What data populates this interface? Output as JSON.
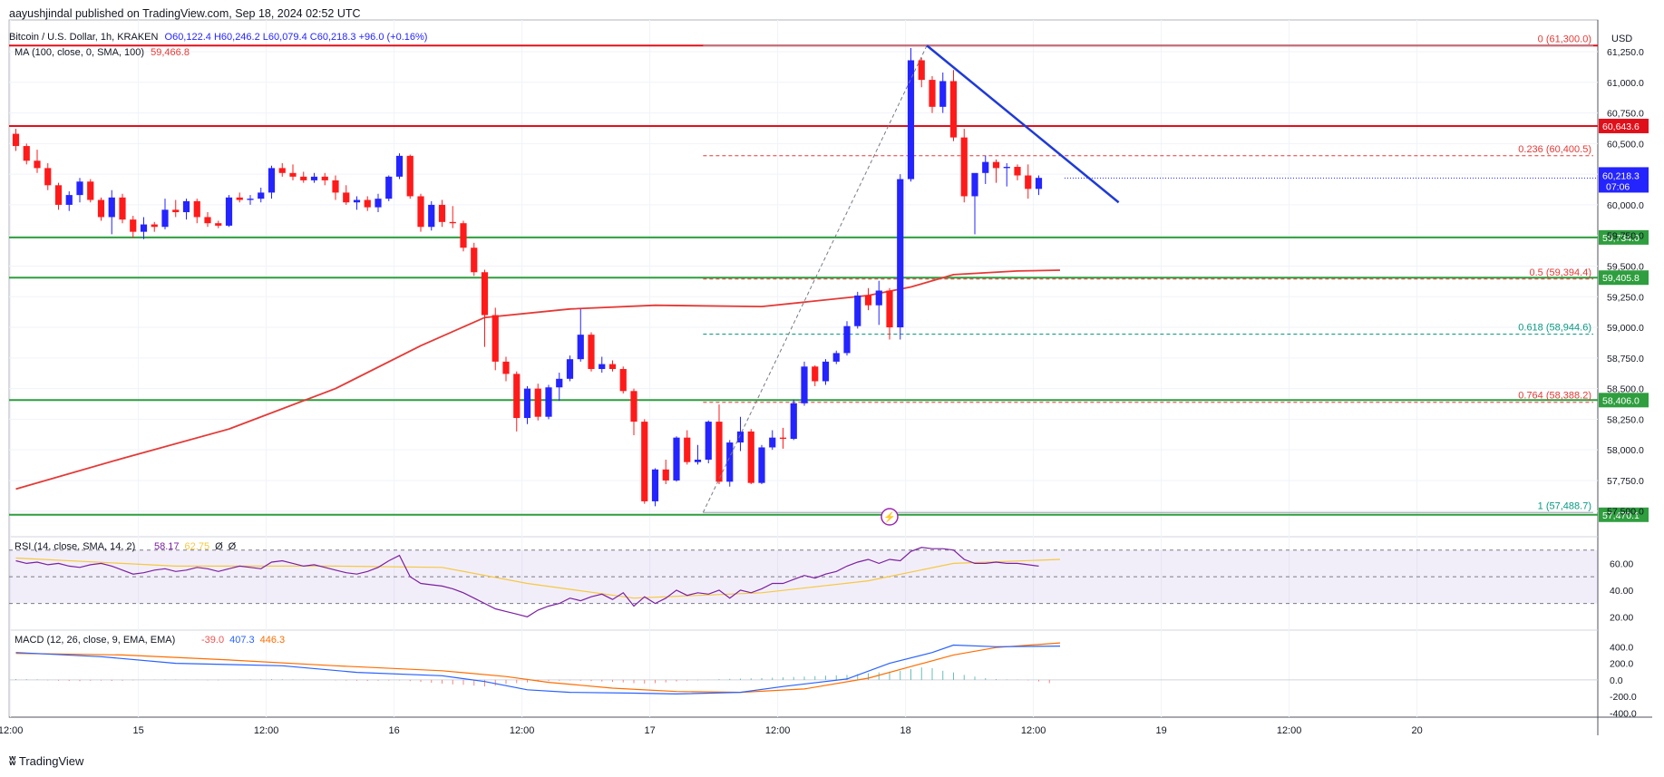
{
  "header": {
    "published": "aayushjindal published on TradingView.com, Sep 18, 2024 02:52 UTC",
    "symbol_line": "Bitcoin / U.S. Dollar, 1h, KRAKEN",
    "ohlc": {
      "o": "O60,122.4",
      "h": "H60,246.2",
      "l": "L60,079.4",
      "c": "C60,218.3",
      "chg": "+96.0 (+0.16%)"
    },
    "ma_label": "MA (100, close, 0, SMA, 100)",
    "ma_value": "59,466.8",
    "currency": "USD"
  },
  "footer": {
    "logo_text": "TradingView"
  },
  "colors": {
    "up": "#2424ff",
    "down": "#ff1a1a",
    "ma": "#e53935",
    "support": "#2e9e3e",
    "resistance": "#e0101a",
    "fib": "#e53935",
    "fib_green": "#089981",
    "trend": "#1e3ad8",
    "rsi": "#7b1fa2",
    "rsi_ma": "#f5c842",
    "macd": "#2962ff",
    "signal": "#ff6d00"
  },
  "chart_data": [
    {
      "type": "candlestick",
      "title": "Bitcoin / U.S. Dollar, 1h, KRAKEN",
      "ylim": [
        57350,
        61450
      ],
      "y_ticks": [
        "57,500.0",
        "57,750.0",
        "58,000.0",
        "58,250.0",
        "58,500.0",
        "58,750.0",
        "59,000.0",
        "59,250.0",
        "59,500.0",
        "59,750.0",
        "60,000.0",
        "60,250.0",
        "60,500.0",
        "60,750.0",
        "61,000.0",
        "61,250.0"
      ],
      "x_ticks": [
        {
          "label": "12:00",
          "bar": -0.5
        },
        {
          "label": "15",
          "bar": 11.5
        },
        {
          "label": "12:00",
          "bar": 23.5
        },
        {
          "label": "16",
          "bar": 35.5
        },
        {
          "label": "12:00",
          "bar": 47.5
        },
        {
          "label": "17",
          "bar": 59.5
        },
        {
          "label": "12:00",
          "bar": 71.5
        },
        {
          "label": "18",
          "bar": 83.5
        },
        {
          "label": "12:00",
          "bar": 95.5
        },
        {
          "label": "19",
          "bar": 107.5
        },
        {
          "label": "12:00",
          "bar": 119.5
        },
        {
          "label": "20",
          "bar": 131.5
        }
      ],
      "candles": [
        [
          60580,
          60620,
          60440,
          60480
        ],
        [
          60480,
          60500,
          60330,
          60360
        ],
        [
          60360,
          60450,
          60260,
          60300
        ],
        [
          60300,
          60340,
          60120,
          60160
        ],
        [
          60160,
          60180,
          59960,
          60000
        ],
        [
          60000,
          60110,
          59950,
          60080
        ],
        [
          60080,
          60220,
          60020,
          60190
        ],
        [
          60190,
          60210,
          60020,
          60040
        ],
        [
          60040,
          60060,
          59870,
          59900
        ],
        [
          59900,
          60120,
          59760,
          60060
        ],
        [
          60060,
          60090,
          59850,
          59880
        ],
        [
          59880,
          59910,
          59730,
          59780
        ],
        [
          59780,
          59900,
          59720,
          59840
        ],
        [
          59840,
          59860,
          59780,
          59820
        ],
        [
          59820,
          60050,
          59800,
          59960
        ],
        [
          59960,
          60040,
          59900,
          59940
        ],
        [
          59940,
          60050,
          59880,
          60030
        ],
        [
          60030,
          60050,
          59850,
          59900
        ],
        [
          59900,
          59940,
          59820,
          59850
        ],
        [
          59850,
          59870,
          59810,
          59830
        ],
        [
          59830,
          60080,
          59820,
          60060
        ],
        [
          60060,
          60100,
          60020,
          60040
        ],
        [
          60040,
          60080,
          60000,
          60050
        ],
        [
          60050,
          60140,
          60020,
          60100
        ],
        [
          60100,
          60320,
          60050,
          60300
        ],
        [
          60300,
          60340,
          60230,
          60260
        ],
        [
          60260,
          60330,
          60200,
          60230
        ],
        [
          60230,
          60270,
          60180,
          60200
        ],
        [
          60200,
          60260,
          60180,
          60230
        ],
        [
          60230,
          60260,
          60160,
          60200
        ],
        [
          60200,
          60240,
          60040,
          60100
        ],
        [
          60100,
          60160,
          60000,
          60020
        ],
        [
          60020,
          60070,
          59960,
          60040
        ],
        [
          60040,
          60070,
          59950,
          59980
        ],
        [
          59980,
          60090,
          59940,
          60050
        ],
        [
          60050,
          60240,
          60030,
          60230
        ],
        [
          60230,
          60420,
          60210,
          60400
        ],
        [
          60400,
          60410,
          60050,
          60070
        ],
        [
          60070,
          60090,
          59780,
          59820
        ],
        [
          59820,
          60030,
          59790,
          60000
        ],
        [
          60000,
          60040,
          59820,
          59860
        ],
        [
          59860,
          59990,
          59810,
          59850
        ],
        [
          59850,
          59870,
          59620,
          59650
        ],
        [
          59650,
          59690,
          59420,
          59450
        ],
        [
          59450,
          59470,
          58840,
          59100
        ],
        [
          59100,
          59160,
          58650,
          58720
        ],
        [
          58720,
          58760,
          58560,
          58620
        ],
        [
          58620,
          58640,
          58150,
          58260
        ],
        [
          58260,
          58520,
          58210,
          58500
        ],
        [
          58500,
          58540,
          58240,
          58270
        ],
        [
          58270,
          58530,
          58250,
          58510
        ],
        [
          58510,
          58630,
          58400,
          58580
        ],
        [
          58580,
          58770,
          58560,
          58740
        ],
        [
          58740,
          59150,
          58720,
          58940
        ],
        [
          58940,
          58960,
          58640,
          58660
        ],
        [
          58660,
          58760,
          58630,
          58700
        ],
        [
          58700,
          58730,
          58640,
          58660
        ],
        [
          58660,
          58680,
          58460,
          58480
        ],
        [
          58480,
          58500,
          58120,
          58230
        ],
        [
          58230,
          58250,
          57560,
          57580
        ],
        [
          57580,
          57850,
          57540,
          57840
        ],
        [
          57840,
          57920,
          57720,
          57750
        ],
        [
          57750,
          58110,
          57740,
          58100
        ],
        [
          58100,
          58160,
          57880,
          57900
        ],
        [
          57900,
          58040,
          57880,
          57920
        ],
        [
          57920,
          58240,
          57890,
          58230
        ],
        [
          58230,
          58370,
          57720,
          57740
        ],
        [
          57740,
          58080,
          57700,
          58060
        ],
        [
          58060,
          58270,
          57990,
          58150
        ],
        [
          58150,
          58170,
          57720,
          57730
        ],
        [
          57730,
          58040,
          57720,
          58020
        ],
        [
          58020,
          58160,
          58000,
          58100
        ],
        [
          58100,
          58180,
          58010,
          58090
        ],
        [
          58090,
          58410,
          58080,
          58380
        ],
        [
          58380,
          58720,
          58360,
          58680
        ],
        [
          58680,
          58690,
          58520,
          58560
        ],
        [
          58560,
          58740,
          58530,
          58720
        ],
        [
          58720,
          58810,
          58700,
          58790
        ],
        [
          58790,
          59050,
          58770,
          59010
        ],
        [
          59010,
          59290,
          58990,
          59260
        ],
        [
          59260,
          59320,
          59140,
          59180
        ],
        [
          59180,
          59380,
          59020,
          59300
        ],
        [
          59300,
          59320,
          58900,
          59000
        ],
        [
          59000,
          60250,
          58900,
          60210
        ],
        [
          60210,
          61280,
          60190,
          61180
        ],
        [
          61180,
          61200,
          60960,
          61020
        ],
        [
          61020,
          61050,
          60750,
          60800
        ],
        [
          60800,
          61080,
          60750,
          61010
        ],
        [
          61010,
          61100,
          60520,
          60550
        ],
        [
          60550,
          60620,
          60020,
          60070
        ],
        [
          60070,
          60250,
          59760,
          60260
        ],
        [
          60260,
          60400,
          60170,
          60350
        ],
        [
          60350,
          60370,
          60180,
          60300
        ],
        [
          60300,
          60340,
          60150,
          60310
        ],
        [
          60310,
          60330,
          60200,
          60240
        ],
        [
          60240,
          60330,
          60050,
          60130
        ],
        [
          60130,
          60240,
          60080,
          60220
        ]
      ],
      "ma100": [
        {
          "bar": 0,
          "value": 57680
        },
        {
          "bar": 10,
          "value": 57930
        },
        {
          "bar": 20,
          "value": 58170
        },
        {
          "bar": 30,
          "value": 58500
        },
        {
          "bar": 38,
          "value": 58850
        },
        {
          "bar": 44,
          "value": 59080
        },
        {
          "bar": 52,
          "value": 59150
        },
        {
          "bar": 60,
          "value": 59180
        },
        {
          "bar": 70,
          "value": 59170
        },
        {
          "bar": 80,
          "value": 59260
        },
        {
          "bar": 84,
          "value": 59330
        },
        {
          "bar": 88,
          "value": 59430
        },
        {
          "bar": 94,
          "value": 59460
        },
        {
          "bar": 98,
          "value": 59466.8
        }
      ],
      "levels": [
        {
          "value": 61300,
          "kind": "resistance"
        },
        {
          "value": 60643.6,
          "label": "60,643.6",
          "kind": "resistance"
        },
        {
          "value": 59734.0,
          "label": "59,734.0",
          "kind": "support"
        },
        {
          "value": 59405.8,
          "label": "59,405.8",
          "kind": "support"
        },
        {
          "value": 58406.0,
          "label": "58,406.0",
          "kind": "support"
        },
        {
          "value": 57470.1,
          "label": "57,470.1",
          "kind": "support"
        }
      ],
      "fib": [
        {
          "ratio": "0",
          "value": 61300.0,
          "label": "0 (61,300.0)"
        },
        {
          "ratio": "0.236",
          "value": 60400.5,
          "label": "0.236 (60,400.5)"
        },
        {
          "ratio": "0.5",
          "value": 59394.4,
          "label": "0.5 (59,394.4)"
        },
        {
          "ratio": "0.618",
          "value": 58944.6,
          "label": "0.618 (58,944.6)"
        },
        {
          "ratio": "0.764",
          "value": 58388.2,
          "label": "0.764 (58,388.2)"
        },
        {
          "ratio": "1",
          "value": 57488.7,
          "label": "1 (57,488.7)"
        }
      ],
      "trendline": [
        {
          "bar": 85.5,
          "value": 61300
        },
        {
          "bar": 103.5,
          "value": 60020
        }
      ],
      "fib_anchor": [
        {
          "bar": 64.5,
          "value": 57488.7
        },
        {
          "bar": 85.5,
          "value": 61300
        }
      ],
      "last_price": {
        "label": "60,218.3",
        "countdown": "07:06",
        "value": 60218.3
      }
    },
    {
      "type": "line",
      "title": "RSI (14, close, SMA, 14, 2)",
      "values_text": [
        "58.17",
        "62.75",
        "Ø",
        "Ø"
      ],
      "ylim": [
        10,
        80
      ],
      "y_ticks": [
        "20.00",
        "40.00",
        "60.00"
      ],
      "band": [
        30,
        70
      ],
      "midline": 50,
      "rsi": [
        62,
        60,
        61,
        59,
        60,
        58,
        57,
        59,
        60,
        58,
        55,
        52,
        53,
        55,
        56,
        54,
        55,
        57,
        56,
        54,
        56,
        58,
        57,
        56,
        61,
        62,
        60,
        58,
        59,
        57,
        55,
        53,
        52,
        54,
        57,
        62,
        66,
        50,
        45,
        44,
        43,
        41,
        38,
        34,
        30,
        26,
        24,
        22,
        20,
        25,
        28,
        30,
        34,
        32,
        35,
        37,
        33,
        38,
        28,
        35,
        30,
        34,
        40,
        36,
        38,
        37,
        40,
        34,
        40,
        38,
        41,
        45,
        45,
        48,
        51,
        49,
        52,
        54,
        58,
        61,
        63,
        60,
        63,
        62,
        69,
        72,
        71,
        71,
        70,
        63,
        60,
        60,
        61,
        60,
        60,
        59,
        58
      ],
      "rsi_ma": [
        [
          0,
          64
        ],
        [
          15,
          58
        ],
        [
          30,
          58
        ],
        [
          40,
          57
        ],
        [
          48,
          45
        ],
        [
          58,
          34
        ],
        [
          70,
          38
        ],
        [
          80,
          47
        ],
        [
          88,
          60
        ],
        [
          98,
          63
        ]
      ]
    },
    {
      "type": "line",
      "title": "MACD (12, 26, close, 9, EMA, EMA)",
      "values_text": [
        "-39.0",
        "407.3",
        "446.3"
      ],
      "ylim": [
        -450,
        600
      ],
      "y_ticks": [
        "400.0",
        "200.0",
        "0.0",
        "-200.0",
        "-400.0"
      ],
      "macd": [
        [
          0,
          330
        ],
        [
          8,
          280
        ],
        [
          15,
          200
        ],
        [
          25,
          170
        ],
        [
          32,
          90
        ],
        [
          40,
          50
        ],
        [
          44,
          -20
        ],
        [
          48,
          -120
        ],
        [
          52,
          -150
        ],
        [
          58,
          -160
        ],
        [
          62,
          -170
        ],
        [
          68,
          -150
        ],
        [
          72,
          -80
        ],
        [
          78,
          10
        ],
        [
          82,
          200
        ],
        [
          86,
          330
        ],
        [
          88,
          420
        ],
        [
          92,
          400
        ],
        [
          98,
          407.3
        ]
      ],
      "signal": [
        [
          0,
          320
        ],
        [
          10,
          300
        ],
        [
          20,
          240
        ],
        [
          30,
          170
        ],
        [
          40,
          110
        ],
        [
          46,
          40
        ],
        [
          50,
          -30
        ],
        [
          56,
          -100
        ],
        [
          62,
          -140
        ],
        [
          68,
          -150
        ],
        [
          74,
          -110
        ],
        [
          80,
          20
        ],
        [
          84,
          160
        ],
        [
          88,
          300
        ],
        [
          92,
          390
        ],
        [
          98,
          446.3
        ]
      ],
      "hist": [
        10,
        8,
        5,
        -5,
        -10,
        -12,
        -15,
        -10,
        -8,
        -12,
        -10,
        -5,
        -2,
        2,
        4,
        3,
        1,
        -2,
        -4,
        -6,
        -2,
        2,
        4,
        5,
        8,
        6,
        4,
        2,
        0,
        -2,
        -5,
        -8,
        -10,
        -12,
        -10,
        -8,
        -5,
        -15,
        -25,
        -35,
        -45,
        -55,
        -60,
        -70,
        -80,
        -70,
        -50,
        -40,
        -30,
        -20,
        -15,
        -10,
        -5,
        -10,
        -15,
        -20,
        -25,
        -30,
        -40,
        -45,
        -40,
        -30,
        -20,
        -10,
        -5,
        2,
        8,
        12,
        15,
        18,
        22,
        26,
        30,
        35,
        40,
        45,
        50,
        55,
        60,
        70,
        80,
        90,
        100,
        110,
        130,
        150,
        140,
        110,
        90,
        60,
        40,
        20,
        10,
        5,
        2,
        -5,
        -20,
        -39
      ]
    }
  ]
}
